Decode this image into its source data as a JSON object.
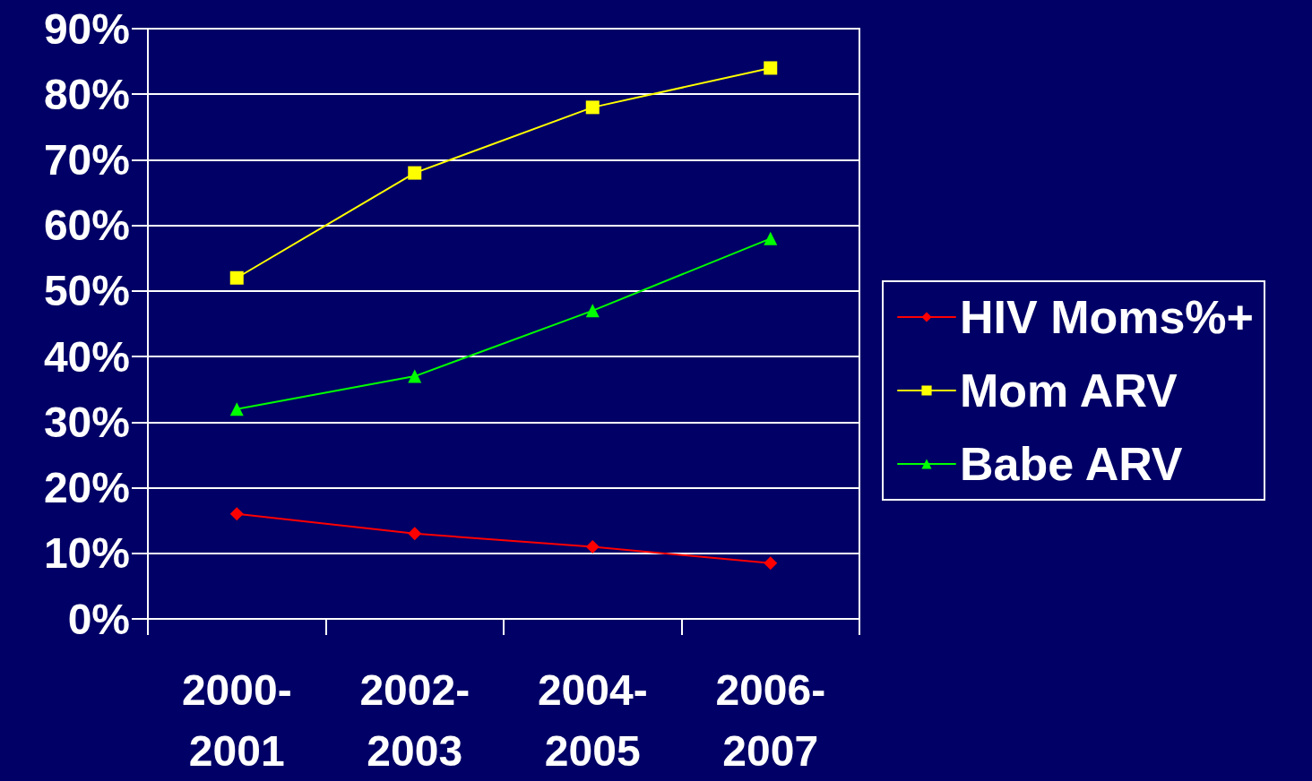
{
  "chart_data": {
    "type": "line",
    "categories": [
      "2000-2001",
      "2002-2003",
      "2004-2005",
      "2006-2007"
    ],
    "series": [
      {
        "name": "HIV Moms%+",
        "color": "#ff0000",
        "marker": "diamond",
        "values": [
          16,
          13,
          11,
          8.5
        ]
      },
      {
        "name": "Mom ARV",
        "color": "#ffff00",
        "marker": "square",
        "values": [
          52,
          68,
          78,
          84
        ]
      },
      {
        "name": "Babe ARV",
        "color": "#00ff00",
        "marker": "triangle",
        "values": [
          32,
          37,
          47,
          58
        ]
      }
    ],
    "ylim": [
      0,
      90
    ],
    "yticks": [
      {
        "value": 0,
        "label": "0%"
      },
      {
        "value": 10,
        "label": "10%"
      },
      {
        "value": 20,
        "label": "20%"
      },
      {
        "value": 30,
        "label": "30%"
      },
      {
        "value": 40,
        "label": "40%"
      },
      {
        "value": 50,
        "label": "50%"
      },
      {
        "value": 60,
        "label": "60%"
      },
      {
        "value": 70,
        "label": "70%"
      },
      {
        "value": 80,
        "label": "80%"
      },
      {
        "value": 90,
        "label": "90%"
      }
    ],
    "grid": "y",
    "legend": "right"
  }
}
